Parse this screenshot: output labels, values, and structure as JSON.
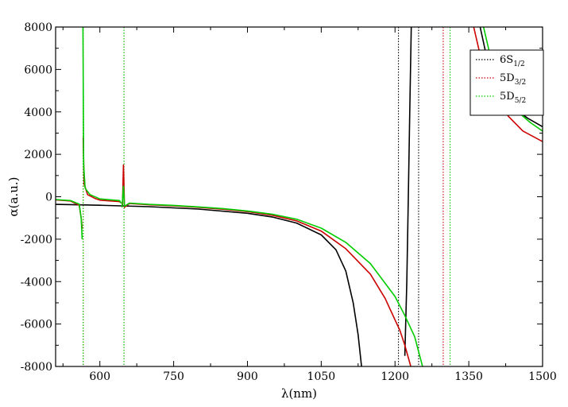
{
  "chart_data": {
    "type": "line",
    "title": "",
    "xlabel": "λ(nm)",
    "ylabel": "α(a.u.)",
    "xlim": [
      510,
      1500
    ],
    "ylim": [
      -8000,
      8000
    ],
    "xticks": [
      600,
      750,
      900,
      1050,
      1200,
      1350,
      1500
    ],
    "xtick_labels": [
      "600",
      "750",
      "900",
      "1050",
      "1200",
      "1350",
      "1500"
    ],
    "yticks": [
      -8000,
      -6000,
      -4000,
      -2000,
      0,
      2000,
      4000,
      6000,
      8000
    ],
    "ytick_labels": [
      "-8000",
      "-6000",
      "-4000",
      "-2000",
      "0",
      "2000",
      "4000",
      "6000",
      "8000"
    ],
    "grid": false,
    "legend": {
      "placement": "top-right",
      "entries": [
        {
          "main": "6S",
          "sub": "1/2",
          "color": "#000000"
        },
        {
          "main": "5D",
          "sub": "3/2",
          "color": "#cc0000"
        },
        {
          "main": "5D",
          "sub": "5/2",
          "color": "#00cc00"
        }
      ]
    },
    "series": [
      {
        "key": "6S1/2",
        "color": "#000000",
        "segments": [
          [
            [
              510,
              -360
            ],
            [
              600,
              -400
            ],
            [
              700,
              -470
            ],
            [
              800,
              -580
            ],
            [
              900,
              -780
            ],
            [
              950,
              -950
            ],
            [
              1000,
              -1240
            ],
            [
              1050,
              -1800
            ],
            [
              1080,
              -2500
            ],
            [
              1100,
              -3500
            ],
            [
              1115,
              -5000
            ],
            [
              1125,
              -6500
            ],
            [
              1132,
              -8000
            ]
          ],
          [
            [
              1220,
              -7500
            ],
            [
              1224,
              -4000
            ],
            [
              1227,
              0
            ],
            [
              1230,
              4000
            ],
            [
              1233,
              8000
            ]
          ],
          [
            [
              1373,
              8000
            ],
            [
              1390,
              6200
            ],
            [
              1410,
              5000
            ],
            [
              1440,
              4200
            ],
            [
              1470,
              3700
            ],
            [
              1500,
              3300
            ]
          ]
        ],
        "resonances": [
          1207,
          1248
        ]
      },
      {
        "key": "5D3/2",
        "color": "#cc0000",
        "segments": [
          [
            [
              510,
              -150
            ],
            [
              540,
              -200
            ],
            [
              558,
              -400
            ],
            [
              562,
              -1000
            ],
            [
              564,
              -1500
            ]
          ],
          [
            [
              566,
              2800
            ],
            [
              568,
              600
            ],
            [
              575,
              100
            ],
            [
              590,
              -80
            ],
            [
              600,
              -160
            ],
            [
              640,
              -230
            ],
            [
              644,
              -300
            ]
          ],
          [
            [
              646,
              -400
            ],
            [
              648,
              1500
            ],
            [
              650,
              -500
            ],
            [
              660,
              -320
            ],
            [
              700,
              -380
            ],
            [
              750,
              -430
            ],
            [
              800,
              -500
            ],
            [
              850,
              -590
            ],
            [
              900,
              -700
            ],
            [
              950,
              -870
            ],
            [
              1000,
              -1140
            ],
            [
              1050,
              -1620
            ],
            [
              1100,
              -2450
            ],
            [
              1150,
              -3650
            ],
            [
              1180,
              -4800
            ],
            [
              1200,
              -5800
            ],
            [
              1210,
              -6300
            ],
            [
              1220,
              -7000
            ],
            [
              1232,
              -8000
            ]
          ],
          [
            [
              1360,
              8000
            ],
            [
              1380,
              6000
            ],
            [
              1400,
              5000
            ],
            [
              1430,
              3800
            ],
            [
              1460,
              3100
            ],
            [
              1500,
              2600
            ]
          ]
        ],
        "resonances": [
          566,
          649,
          1298
        ]
      },
      {
        "key": "5D5/2",
        "color": "#00cc00",
        "segments": [
          [
            [
              510,
              -130
            ],
            [
              540,
              -180
            ],
            [
              558,
              -350
            ],
            [
              562,
              -1000
            ],
            [
              564,
              -2000
            ]
          ],
          [
            [
              565.5,
              8000
            ],
            [
              566,
              6000
            ],
            [
              567,
              1500
            ],
            [
              570,
              400
            ],
            [
              580,
              100
            ],
            [
              600,
              -100
            ],
            [
              640,
              -180
            ],
            [
              643,
              -300
            ]
          ],
          [
            [
              645,
              -500
            ],
            [
              648,
              500
            ],
            [
              650,
              -450
            ],
            [
              660,
              -300
            ],
            [
              700,
              -360
            ],
            [
              750,
              -410
            ],
            [
              800,
              -480
            ],
            [
              850,
              -560
            ],
            [
              900,
              -670
            ],
            [
              950,
              -820
            ],
            [
              1000,
              -1060
            ],
            [
              1050,
              -1480
            ],
            [
              1100,
              -2150
            ],
            [
              1150,
              -3150
            ],
            [
              1200,
              -4700
            ],
            [
              1220,
              -5600
            ],
            [
              1240,
              -6600
            ],
            [
              1256,
              -8000
            ]
          ],
          [
            [
              1380,
              8000
            ],
            [
              1395,
              6500
            ],
            [
              1420,
              5000
            ],
            [
              1450,
              4000
            ],
            [
              1475,
              3500
            ],
            [
              1500,
              3100
            ]
          ]
        ],
        "resonances": [
          566,
          649,
          1312
        ]
      }
    ]
  }
}
